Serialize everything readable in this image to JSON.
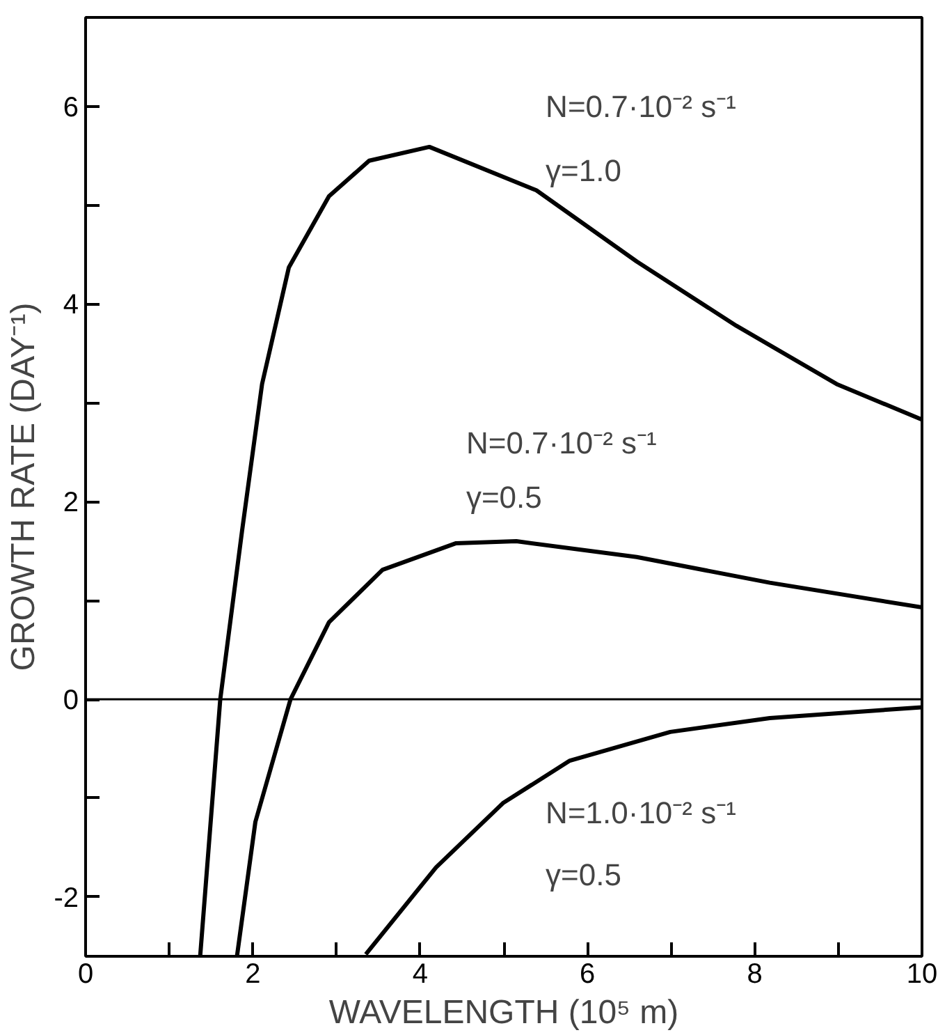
{
  "chart_data": {
    "type": "line",
    "xlabel": "WAVELENGTH (10⁵ m)",
    "ylabel": "GROWTH RATE (DAY⁻¹)",
    "xlim": [
      0,
      10
    ],
    "ylim": [
      -2.6,
      6.9
    ],
    "xticks": [
      0,
      {
        "value": 1,
        "label": null
      },
      2,
      {
        "value": 3,
        "label": null
      },
      4,
      {
        "value": 5,
        "label": null
      },
      6,
      {
        "value": 7,
        "label": null
      },
      8,
      {
        "value": 9,
        "label": null
      },
      10
    ],
    "yticks": [
      -2,
      {
        "value": -1,
        "label": null
      },
      0,
      {
        "value": 1,
        "label": null
      },
      2,
      {
        "value": 3,
        "label": null
      },
      4,
      {
        "value": 5,
        "label": null
      },
      6
    ],
    "grid": false,
    "marker": "none",
    "line_style": "solid",
    "series": [
      {
        "color": "#000000",
        "x": [
          1.37,
          1.61,
          1.87,
          2.11,
          2.43,
          2.91,
          3.39,
          4.11,
          5.39,
          6.59,
          7.78,
          8.98,
          10.0
        ],
        "values": [
          -2.6,
          0,
          1.7,
          3.19,
          4.37,
          5.09,
          5.45,
          5.59,
          5.15,
          4.43,
          3.78,
          3.19,
          2.83
        ]
      },
      {
        "color": "#000000",
        "x": [
          1.81,
          2.03,
          2.45,
          2.91,
          3.55,
          4.43,
          5.15,
          6.59,
          8.18,
          10.0
        ],
        "values": [
          -2.6,
          -1.24,
          0,
          0.78,
          1.31,
          1.58,
          1.6,
          1.44,
          1.18,
          0.93
        ]
      },
      {
        "color": "#000000",
        "x": [
          3.35,
          4.19,
          4.99,
          5.79,
          6.99,
          8.18,
          10.0
        ],
        "values": [
          -2.58,
          -1.7,
          -1.05,
          -0.62,
          -0.33,
          -0.19,
          -0.08
        ]
      }
    ],
    "ref_lines": [
      {
        "axis": "y",
        "value": 0,
        "color": "#000000"
      }
    ],
    "annotations": [
      "N=0.7·10⁻² s⁻¹",
      "γ=1.0",
      "N=0.7·10⁻² s⁻¹",
      "γ=0.5",
      "N=1.0·10⁻² s⁻¹",
      "γ=0.5"
    ]
  }
}
